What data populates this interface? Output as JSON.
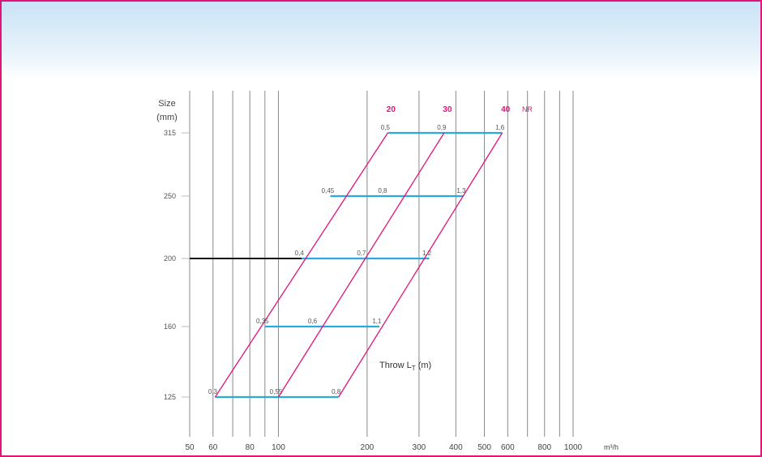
{
  "chart_data": {
    "type": "line",
    "title": "",
    "xlabel": "",
    "x_unit": "m³/h",
    "x_scale": "log",
    "xlim": [
      50,
      1000
    ],
    "x_ticks": [
      50,
      60,
      80,
      100,
      200,
      300,
      400,
      500,
      600,
      800,
      1000
    ],
    "x_tick_labels": [
      "50",
      "60",
      "80",
      "100",
      "200",
      "300",
      "400",
      "500",
      "600",
      "800",
      "1000"
    ],
    "extra_x_gridlines": [
      70,
      90,
      700,
      900
    ],
    "ylabel": "Size",
    "y_unit": "(mm)",
    "y_categories": [
      "315",
      "250",
      "200",
      "160",
      "125"
    ],
    "annotation": "Throw L",
    "annotation_sub": "T",
    "annotation_tail": " (m)",
    "nr_label": "NR",
    "nr_series": [
      {
        "name": "20",
        "points": [
          {
            "size": "125",
            "x": 61
          },
          {
            "size": "315",
            "x": 235
          }
        ]
      },
      {
        "name": "30",
        "points": [
          {
            "size": "125",
            "x": 100
          },
          {
            "size": "315",
            "x": 365
          }
        ]
      },
      {
        "name": "40",
        "points": [
          {
            "size": "125",
            "x": 160
          },
          {
            "size": "315",
            "x": 575
          }
        ]
      }
    ],
    "throw_lines": [
      {
        "size": "315",
        "x_from": 235,
        "x_to": 575,
        "labels": [
          {
            "x": 235,
            "text": "0,5"
          },
          {
            "x": 365,
            "text": "0,9"
          },
          {
            "x": 575,
            "text": "1,6"
          }
        ]
      },
      {
        "size": "250",
        "x_from": 150,
        "x_to": 425,
        "labels": [
          {
            "x": 150,
            "text": "0,45"
          },
          {
            "x": 230,
            "text": "0,8"
          },
          {
            "x": 425,
            "text": "1,3"
          }
        ]
      },
      {
        "size": "200",
        "x_from": 50,
        "x_to": 325,
        "labels": [
          {
            "x": 120,
            "text": "0,4"
          },
          {
            "x": 195,
            "text": "0,7"
          },
          {
            "x": 325,
            "text": "1,2"
          }
        ]
      },
      {
        "size": "160",
        "x_from": 90,
        "x_to": 220,
        "labels": [
          {
            "x": 90,
            "text": "0,35"
          },
          {
            "x": 133,
            "text": "0,6"
          },
          {
            "x": 220,
            "text": "1,1"
          }
        ]
      },
      {
        "size": "125",
        "x_from": 61,
        "x_to": 160,
        "labels": [
          {
            "x": 61,
            "text": "0,3"
          },
          {
            "x": 100,
            "text": "0,55"
          },
          {
            "x": 160,
            "text": "0,8"
          }
        ]
      }
    ],
    "operating_line": {
      "size": "200",
      "x_from": 50,
      "x_to": 120
    },
    "colors": {
      "nr_line": "#e0147a",
      "throw_line": "#2aa8e0",
      "operating_line": "#111111",
      "gridline": "#8a8a8a",
      "frame": "#e0147a"
    },
    "grid": true
  }
}
